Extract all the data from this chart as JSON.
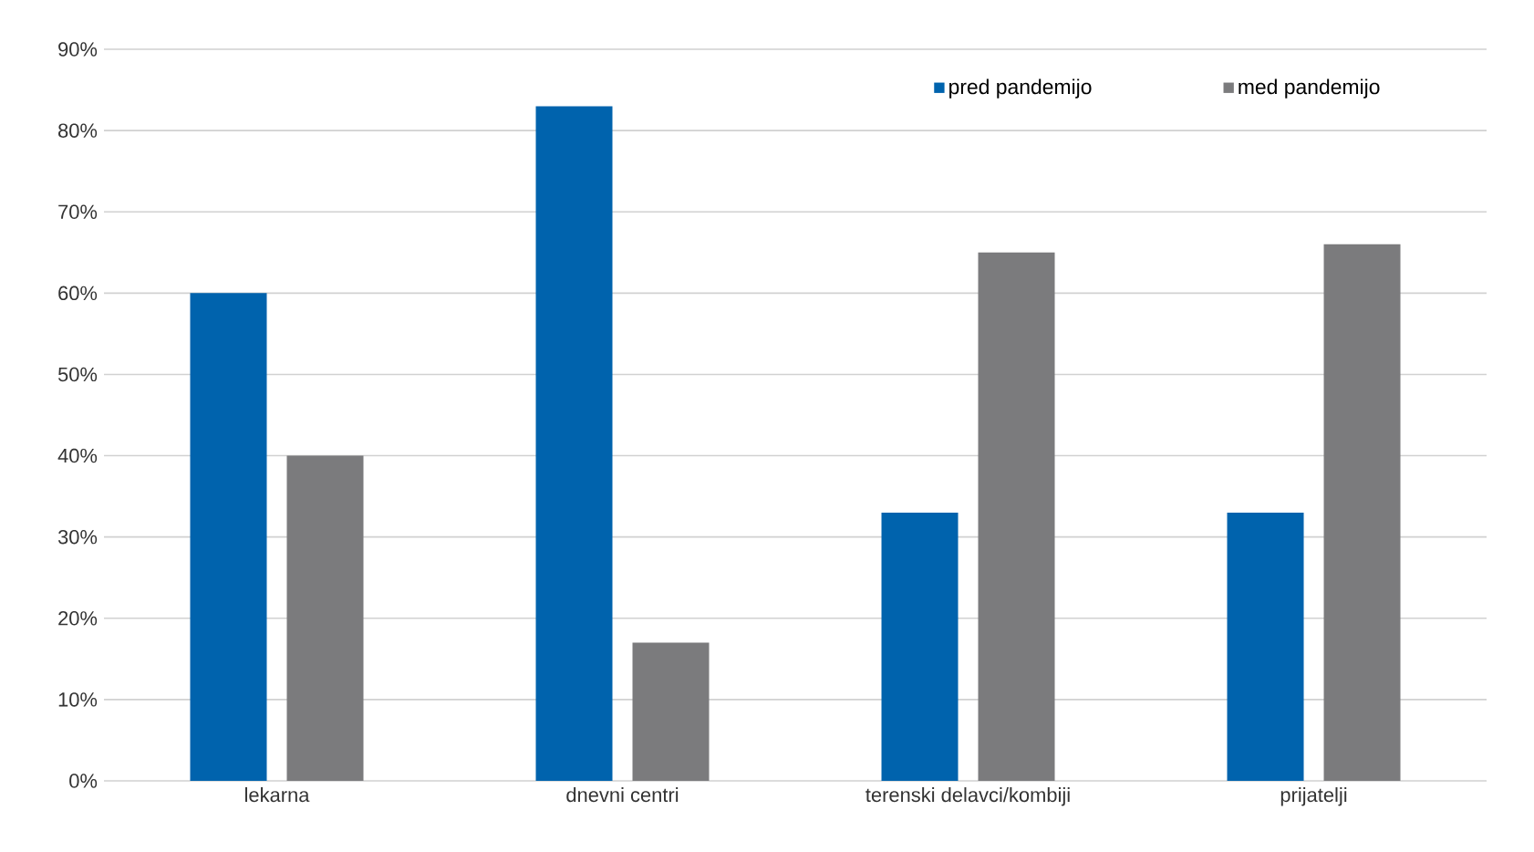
{
  "chart_data": {
    "type": "bar",
    "categories": [
      "lekarna",
      "dnevni centri",
      "terenski delavci/kombiji",
      "prijatelji"
    ],
    "series": [
      {
        "name": "pred pandemijo",
        "color": "#0063ad",
        "values": [
          60,
          83,
          33,
          33
        ]
      },
      {
        "name": "med pandemijo",
        "color": "#7b7b7d",
        "values": [
          40,
          17,
          65,
          66
        ]
      }
    ],
    "ylim": [
      0,
      90
    ],
    "yticks": [
      {
        "value": 0,
        "label": "0%"
      },
      {
        "value": 10,
        "label": "10%"
      },
      {
        "value": 20,
        "label": "20%"
      },
      {
        "value": 30,
        "label": "30%"
      },
      {
        "value": 40,
        "label": "40%"
      },
      {
        "value": 50,
        "label": "50%"
      },
      {
        "value": 60,
        "label": "60%"
      },
      {
        "value": 70,
        "label": "70%"
      },
      {
        "value": 80,
        "label": "80%"
      },
      {
        "value": 90,
        "label": "90%"
      }
    ],
    "grid": "y",
    "legend": "top right"
  }
}
